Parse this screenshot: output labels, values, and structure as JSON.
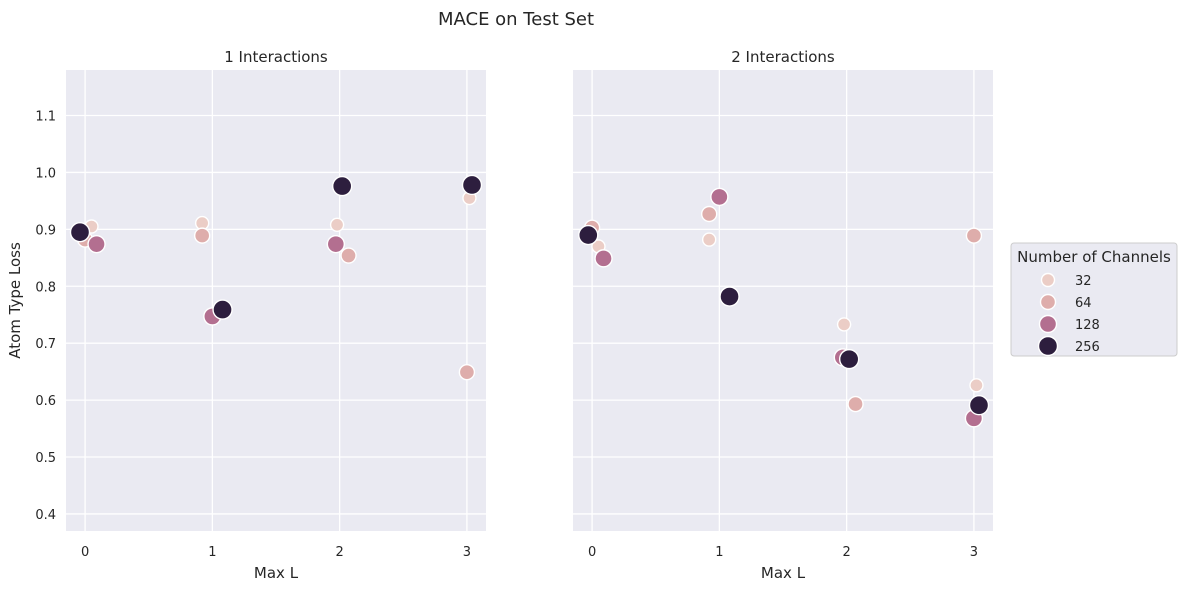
{
  "figure": {
    "title": "MACE on Test Set"
  },
  "legend": {
    "title": "Number of Channels",
    "placement": "right",
    "entries": [
      {
        "label": "32",
        "color": "#ebcdc6"
      },
      {
        "label": "64",
        "color": "#deadab"
      },
      {
        "label": "128",
        "color": "#b36f90"
      },
      {
        "label": "256",
        "color": "#2d1e3e"
      }
    ]
  },
  "chart_data": [
    {
      "type": "scatter",
      "title": "1 Interactions",
      "xlabel": "Max L",
      "ylabel": "Atom Type Loss",
      "xticks": [
        "0",
        "1",
        "2",
        "3"
      ],
      "yticks": [
        "0.4",
        "0.5",
        "0.6",
        "0.7",
        "0.8",
        "0.9",
        "1.0",
        "1.1"
      ],
      "xlim": [
        -0.15,
        3.15
      ],
      "ylim": [
        0.37,
        1.18
      ],
      "grid": true,
      "series": [
        {
          "name": "32",
          "x": [
            0.05,
            0.92,
            1.98,
            3.02
          ],
          "y": [
            0.905,
            0.911,
            0.908,
            0.955
          ]
        },
        {
          "name": "64",
          "x": [
            0.0,
            0.92,
            2.07,
            3.0
          ],
          "y": [
            0.882,
            0.889,
            0.854,
            0.649
          ]
        },
        {
          "name": "128",
          "x": [
            0.09,
            1.0,
            1.97
          ],
          "y": [
            0.874,
            0.747,
            0.874
          ]
        },
        {
          "name": "256",
          "x": [
            -0.04,
            1.08,
            2.02,
            3.04
          ],
          "y": [
            0.895,
            0.759,
            0.976,
            0.978
          ]
        }
      ]
    },
    {
      "type": "scatter",
      "title": "2 Interactions",
      "xlabel": "Max L",
      "ylabel": "",
      "xticks": [
        "0",
        "1",
        "2",
        "3"
      ],
      "yticks": [],
      "xlim": [
        -0.15,
        3.15
      ],
      "ylim": [
        0.37,
        1.18
      ],
      "grid": true,
      "series": [
        {
          "name": "32",
          "x": [
            0.05,
            0.92,
            1.98,
            3.02
          ],
          "y": [
            0.87,
            0.882,
            0.733,
            0.626
          ]
        },
        {
          "name": "64",
          "x": [
            0.0,
            0.92,
            2.07,
            3.0
          ],
          "y": [
            0.903,
            0.927,
            0.593,
            0.889
          ]
        },
        {
          "name": "128",
          "x": [
            0.09,
            1.0,
            1.97,
            3.0
          ],
          "y": [
            0.849,
            0.957,
            0.675,
            0.568
          ]
        },
        {
          "name": "256",
          "x": [
            -0.03,
            1.08,
            2.02,
            3.04
          ],
          "y": [
            0.89,
            0.782,
            0.672,
            0.591
          ]
        }
      ]
    }
  ]
}
